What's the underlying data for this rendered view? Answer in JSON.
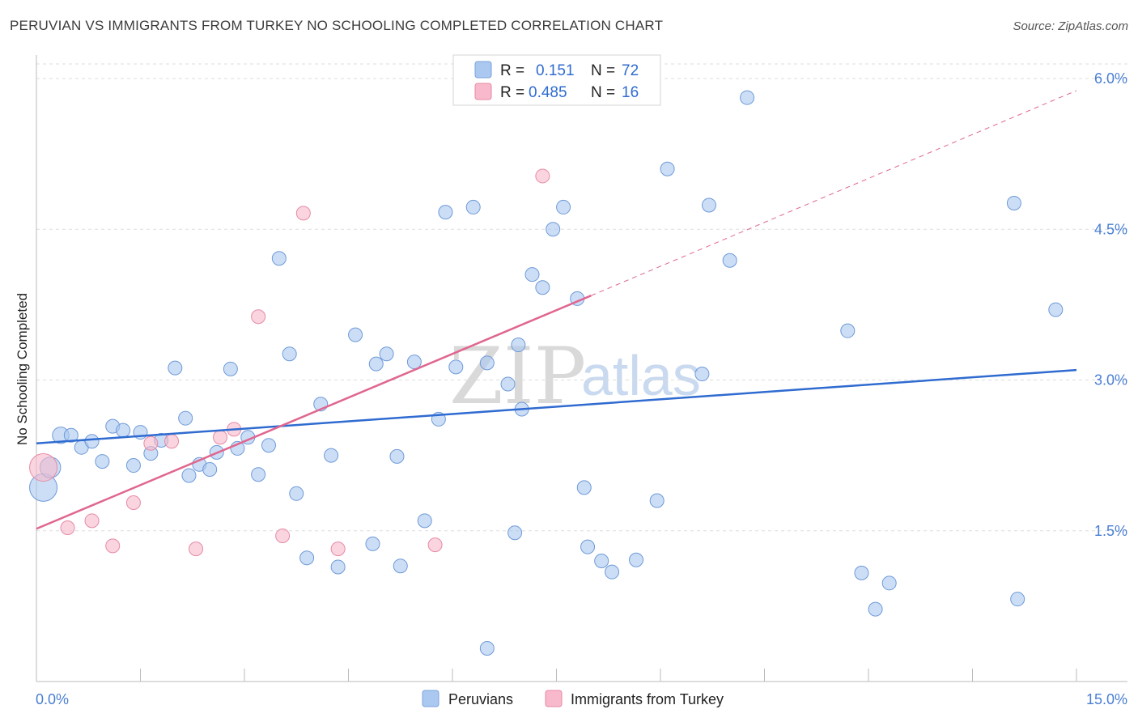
{
  "header": {
    "title": "PERUVIAN VS IMMIGRANTS FROM TURKEY NO SCHOOLING COMPLETED CORRELATION CHART",
    "source": "Source: ZipAtlas.com"
  },
  "watermark": {
    "zip": "ZIP",
    "atlas": "atlas"
  },
  "legend": {
    "r_label": "R =",
    "n_label": "N =",
    "rows": [
      {
        "r": "0.151",
        "n": "72",
        "color": "#aac8f0"
      },
      {
        "r": "0.485",
        "n": "16",
        "color": "#f7b9cb"
      }
    ]
  },
  "chart_data": {
    "type": "scatter",
    "title": "PERUVIAN VS IMMIGRANTS FROM TURKEY NO SCHOOLING COMPLETED CORRELATION CHART",
    "xlabel": "",
    "ylabel": "No Schooling Completed",
    "xlim": [
      0,
      15
    ],
    "ylim": [
      0,
      6.3
    ],
    "x_tick_labels": [
      "0.0%",
      "15.0%"
    ],
    "y_ticks": [
      1.5,
      3.0,
      4.5,
      6.0
    ],
    "y_tick_labels": [
      "1.5%",
      "3.0%",
      "4.5%",
      "6.0%"
    ],
    "grid": true,
    "legend_placement": "top-center",
    "series": [
      {
        "name": "Peruvians",
        "color": "#aac8f0",
        "stroke": "#6f9ad8",
        "trend": {
          "x": [
            0,
            15
          ],
          "y": [
            2.37,
            3.1
          ],
          "color": "#2f6bd0"
        },
        "points": [
          [
            0.1,
            1.93
          ],
          [
            0.2,
            2.13
          ],
          [
            0.35,
            2.45
          ],
          [
            0.5,
            2.45
          ],
          [
            0.65,
            2.33
          ],
          [
            0.8,
            2.39
          ],
          [
            0.95,
            2.19
          ],
          [
            1.1,
            2.54
          ],
          [
            1.25,
            2.5
          ],
          [
            1.4,
            2.15
          ],
          [
            1.5,
            2.48
          ],
          [
            1.65,
            2.27
          ],
          [
            1.8,
            2.4
          ],
          [
            2.0,
            3.12
          ],
          [
            2.15,
            2.62
          ],
          [
            2.2,
            2.05
          ],
          [
            2.35,
            2.16
          ],
          [
            2.5,
            2.11
          ],
          [
            2.6,
            2.28
          ],
          [
            2.8,
            3.11
          ],
          [
            2.9,
            2.32
          ],
          [
            3.05,
            2.43
          ],
          [
            3.2,
            2.06
          ],
          [
            3.35,
            2.35
          ],
          [
            3.5,
            4.21
          ],
          [
            3.65,
            3.26
          ],
          [
            3.75,
            1.87
          ],
          [
            3.9,
            1.23
          ],
          [
            4.1,
            2.76
          ],
          [
            4.25,
            2.25
          ],
          [
            4.35,
            1.14
          ],
          [
            4.6,
            3.45
          ],
          [
            4.85,
            1.37
          ],
          [
            4.9,
            3.16
          ],
          [
            5.05,
            3.26
          ],
          [
            5.2,
            2.24
          ],
          [
            5.25,
            1.15
          ],
          [
            5.45,
            3.18
          ],
          [
            5.6,
            1.6
          ],
          [
            5.8,
            2.61
          ],
          [
            5.9,
            4.67
          ],
          [
            6.05,
            3.13
          ],
          [
            6.3,
            4.72
          ],
          [
            6.5,
            3.17
          ],
          [
            6.5,
            0.33
          ],
          [
            6.8,
            2.96
          ],
          [
            6.9,
            1.48
          ],
          [
            6.95,
            3.35
          ],
          [
            7.0,
            2.71
          ],
          [
            7.15,
            4.05
          ],
          [
            7.3,
            3.92
          ],
          [
            7.45,
            4.5
          ],
          [
            7.6,
            4.72
          ],
          [
            7.8,
            3.81
          ],
          [
            7.9,
            1.93
          ],
          [
            7.95,
            1.34
          ],
          [
            8.15,
            1.2
          ],
          [
            8.3,
            1.09
          ],
          [
            8.65,
            1.21
          ],
          [
            8.95,
            1.8
          ],
          [
            9.1,
            5.1
          ],
          [
            9.6,
            3.06
          ],
          [
            9.7,
            4.74
          ],
          [
            10.0,
            4.19
          ],
          [
            10.25,
            5.81
          ],
          [
            11.7,
            3.49
          ],
          [
            11.9,
            1.08
          ],
          [
            12.1,
            0.72
          ],
          [
            12.3,
            0.98
          ],
          [
            14.1,
            4.76
          ],
          [
            14.15,
            0.82
          ],
          [
            14.7,
            3.7
          ]
        ],
        "point_sizes": [
          2,
          1.5,
          1.2,
          1,
          1,
          1,
          1,
          1,
          1,
          1,
          1,
          1,
          1,
          1,
          1,
          1,
          1,
          1,
          1,
          1,
          1,
          1,
          1,
          1,
          1,
          1,
          1,
          1,
          1,
          1,
          1,
          1,
          1,
          1,
          1,
          1,
          1,
          1,
          1,
          1,
          1,
          1,
          1,
          1,
          1,
          1,
          1,
          1,
          1,
          1,
          1,
          1,
          1,
          1,
          1,
          1,
          1,
          1,
          1,
          1,
          1,
          1,
          1,
          1,
          1,
          1,
          1,
          1,
          1,
          1,
          1,
          1
        ]
      },
      {
        "name": "Immigrants from Turkey",
        "color": "#f7b9cb",
        "stroke": "#e78aa5",
        "trend": {
          "x": [
            0,
            8.0
          ],
          "y": [
            1.52,
            3.84
          ],
          "dashed_to": [
            15,
            5.88
          ],
          "color": "#e0668f"
        },
        "points": [
          [
            0.1,
            2.13
          ],
          [
            0.45,
            1.53
          ],
          [
            0.8,
            1.6
          ],
          [
            1.1,
            1.35
          ],
          [
            1.4,
            1.78
          ],
          [
            1.65,
            2.37
          ],
          [
            1.95,
            2.39
          ],
          [
            2.3,
            1.32
          ],
          [
            2.65,
            2.43
          ],
          [
            2.85,
            2.51
          ],
          [
            3.2,
            3.63
          ],
          [
            3.55,
            1.45
          ],
          [
            3.85,
            4.66
          ],
          [
            4.35,
            1.32
          ],
          [
            5.75,
            1.36
          ],
          [
            7.3,
            5.03
          ]
        ],
        "point_sizes": [
          2,
          1,
          1,
          1,
          1,
          1,
          1,
          1,
          1,
          1,
          1,
          1,
          1,
          1,
          1,
          1
        ]
      }
    ]
  },
  "bottom_legend": [
    {
      "label": "Peruvians",
      "color": "#aac8f0"
    },
    {
      "label": "Immigrants from Turkey",
      "color": "#f7b9cb"
    }
  ]
}
